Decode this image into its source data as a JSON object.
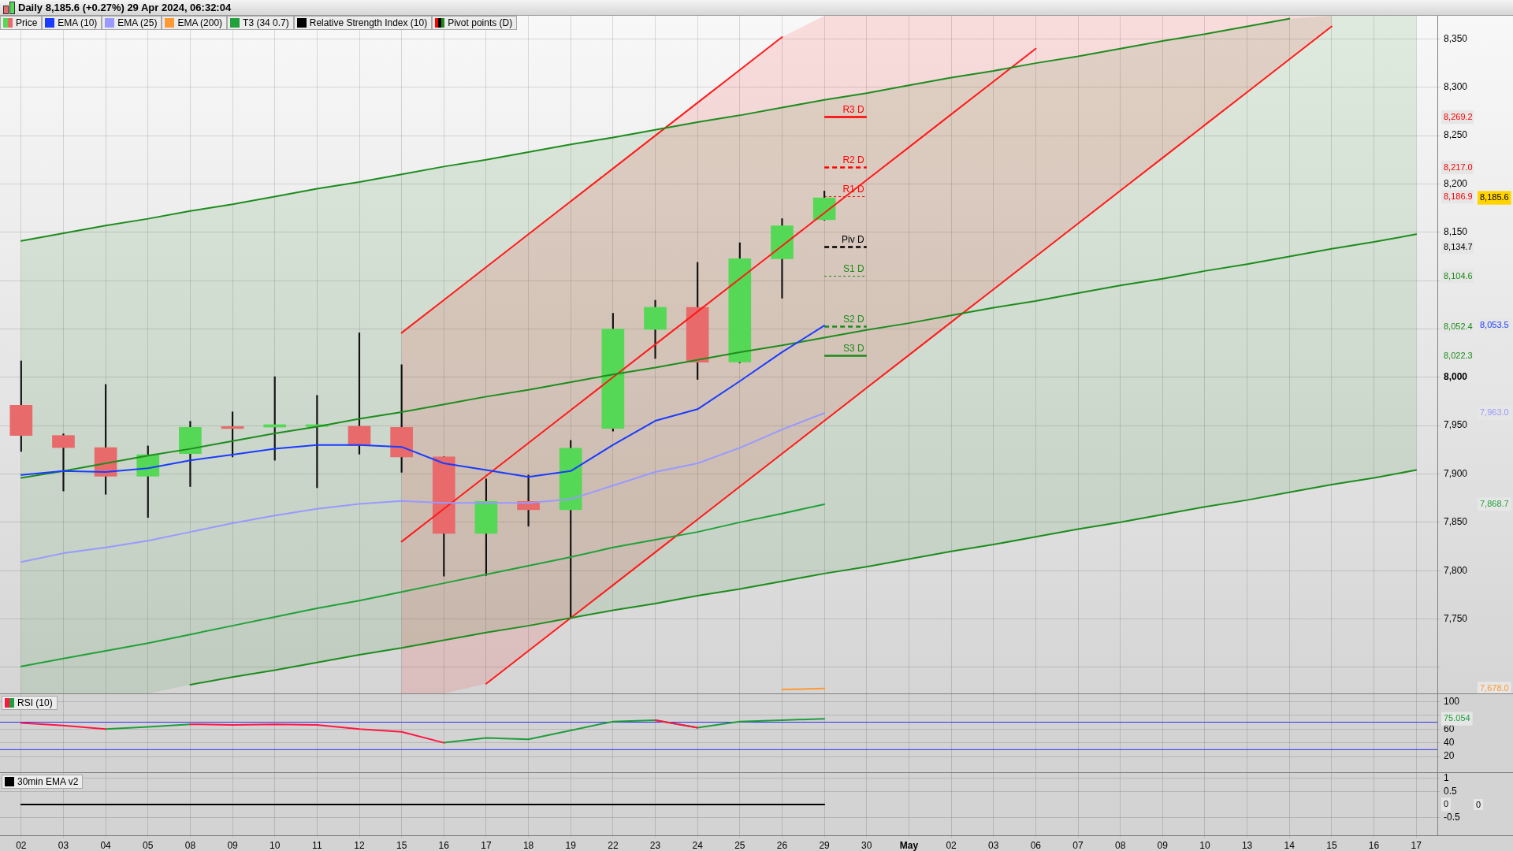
{
  "chart_data": [
    {
      "type": "candlestick",
      "title": "Daily 8,185.6 (+0.27%) 29 Apr 2024, 06:32:04",
      "legend": "top left",
      "grid": true,
      "tick_labels": "y",
      "categories": [
        null,
        null,
        null,
        null,
        null,
        null,
        null,
        null,
        null,
        null,
        null,
        null,
        null,
        null,
        null,
        null,
        null,
        null,
        null,
        null,
        null,
        null,
        null,
        null,
        null,
        null,
        null,
        null,
        null,
        null,
        null,
        null,
        null,
        null
      ],
      "ylim": [
        7673,
        8374
      ],
      "yticks": [
        {
          "value": 7700,
          "label": null
        },
        {
          "value": 7750,
          "label": "7,750"
        },
        {
          "value": 7800,
          "label": "7,800"
        },
        {
          "value": 7850,
          "label": "7,850"
        },
        {
          "value": 7900,
          "label": "7,900"
        },
        {
          "value": 7950,
          "label": "7,950"
        },
        {
          "value": 8000,
          "label": "8,000"
        },
        {
          "value": 8022.3,
          "label": "8,022.3"
        },
        {
          "value": 8050,
          "label": null
        },
        {
          "value": 8052.4,
          "label": "8,052.4"
        },
        {
          "value": 8100,
          "label": null
        },
        {
          "value": 8104.6,
          "label": "8,104.6"
        },
        {
          "value": 8134.7,
          "label": "8,134.7"
        },
        {
          "value": 8150,
          "label": "8,150"
        },
        {
          "value": 8186.9,
          "label": "8,186.9"
        },
        {
          "value": 8200,
          "label": "8,200"
        },
        {
          "value": 8217.0,
          "label": "8,217.0"
        },
        {
          "value": 8250,
          "label": "8,250"
        },
        {
          "value": 8269.2,
          "label": "8,269.2"
        },
        {
          "value": 8300,
          "label": "8,300"
        },
        {
          "value": 8350,
          "label": "8,350"
        }
      ],
      "y2lim": [
        7673,
        8374
      ],
      "y2ticks": [
        {
          "value": 7678.0,
          "label": "7,678.0"
        },
        {
          "value": 7868.7,
          "label": "7,868.7"
        },
        {
          "value": 7963.0,
          "label": "7,963.0"
        },
        {
          "value": 8053.5,
          "label": "8,053.5"
        },
        {
          "value": 8185.6,
          "label": "8,185.6"
        }
      ],
      "annotations": [
        "Relative Strength Index (10)",
        "Pivot points (D)"
      ],
      "ref_lines": [
        {
          "axis": "y",
          "value": 8269.2,
          "label": "R3 D",
          "color": "#ff0000",
          "line_style": "solid"
        },
        {
          "axis": "y",
          "value": 8217.0,
          "label": "R2 D",
          "color": "#ff0000",
          "line_style": "dashed"
        },
        {
          "axis": "y",
          "value": 8186.9,
          "label": "R1 D",
          "color": "#ff0000",
          "line_style": "dotted"
        },
        {
          "axis": "y",
          "value": 8134.7,
          "label": "Piv D",
          "color": "#000000",
          "line_style": "dashed"
        },
        {
          "axis": "y",
          "value": 8104.6,
          "label": "S1 D",
          "color": "#1a8a1a",
          "line_style": "dotted"
        },
        {
          "axis": "y",
          "value": 8052.4,
          "label": "S2 D",
          "color": "#1a8a1a",
          "line_style": "dashed"
        },
        {
          "axis": "y",
          "value": 8022.3,
          "label": "S3 D",
          "color": "#1a8a1a",
          "line_style": "solid"
        }
      ],
      "series": [
        {
          "name": "Price",
          "ohlc": [
            [
              7971.0,
              8017.0,
              7923.3,
              7939.8
            ],
            [
              7939.8,
              7941.5,
              7882.4,
              7927.3
            ],
            [
              7927.3,
              7992.6,
              7879.0,
              7897.7
            ],
            [
              7897.7,
              7929.0,
              7855.0,
              7919.9
            ],
            [
              7921.0,
              7954.5,
              7887.0,
              7948.3
            ],
            [
              7949.0,
              7964.2,
              7917.6,
              7947.0
            ],
            [
              7948.5,
              8000.6,
              7914.2,
              7951.0
            ],
            [
              7949.0,
              7981.3,
              7885.8,
              7951.0
            ],
            [
              7949.4,
              8046.0,
              7920.5,
              7929.5
            ],
            [
              7948.3,
              8013.0,
              7901.7,
              7917.6
            ],
            [
              7917.6,
              7918.0,
              7794.3,
              7838.6
            ],
            [
              7838.6,
              7894.9,
              7795.0,
              7871.6
            ],
            [
              7871.6,
              7898.9,
              7846.0,
              7863.0
            ],
            [
              7863.0,
              7934.7,
              7751.0,
              7926.7
            ],
            [
              7947.2,
              8066.2,
              7944.3,
              8050.0
            ],
            [
              8049.5,
              8079.7,
              8019.5,
              8072.4
            ],
            [
              8072.4,
              8118.9,
              7997.8,
              8015.7
            ],
            [
              8015.9,
              8139.2,
              8015.0,
              8122.7
            ],
            [
              8122.7,
              8164.1,
              8081.9,
              8156.8
            ],
            [
              8163.0,
              8192.7,
              8162.4,
              8185.6
            ],
            null,
            null,
            null,
            null,
            null,
            null,
            null,
            null,
            null,
            null,
            null,
            null,
            null,
            null
          ],
          "colors": [
            "#e86a6a",
            "#e86a6a",
            "#e86a6a",
            "#55d855",
            "#55d855",
            "#e86a6a",
            "#55d855",
            "#55d855",
            "#e86a6a",
            "#e86a6a",
            "#e86a6a",
            "#55d855",
            "#e86a6a",
            "#55d855",
            "#55d855",
            "#55d855",
            "#e86a6a",
            "#55d855",
            "#55d855",
            "#55d855",
            null,
            null,
            null,
            null,
            null,
            null,
            null,
            null,
            null,
            null,
            null,
            null,
            null,
            null
          ]
        },
        {
          "name": "EMA (10)",
          "type": "line",
          "color": "#1a3cff",
          "values": [
            7899,
            7903,
            7902,
            7906,
            7914,
            7920,
            7926,
            7930,
            7930,
            7928,
            7911,
            7904,
            7897,
            7903,
            7930,
            7955,
            7967,
            7996,
            8026,
            8053.5,
            null,
            null,
            null,
            null,
            null,
            null,
            null,
            null,
            null,
            null,
            null,
            null,
            null,
            null
          ]
        },
        {
          "name": "EMA (25)",
          "type": "line",
          "color": "#9999ff",
          "values": [
            7809,
            7818,
            7824,
            7831,
            7840,
            7849,
            7857,
            7864,
            7869,
            7872,
            7870,
            7870,
            7870,
            7874,
            7888,
            7902,
            7911,
            7927,
            7946,
            7963.0,
            null,
            null,
            null,
            null,
            null,
            null,
            null,
            null,
            null,
            null,
            null,
            null,
            null,
            null
          ]
        },
        {
          "name": "EMA (200)",
          "type": "line",
          "color": "#ff9933",
          "values": [
            null,
            null,
            null,
            null,
            null,
            null,
            null,
            null,
            null,
            null,
            null,
            null,
            null,
            null,
            null,
            null,
            null,
            null,
            7677,
            7678.0,
            null,
            null,
            null,
            null,
            null,
            null,
            null,
            null,
            null,
            null,
            null,
            null,
            null,
            null
          ]
        },
        {
          "name": "T3 (34 0.7)",
          "type": "line",
          "color": "#22a03a",
          "values": [
            7701,
            7709,
            7717,
            7725,
            7734,
            7743,
            7752,
            7761,
            7769,
            7778,
            7787,
            7796,
            7805,
            7814,
            7824,
            7832,
            7840,
            7850,
            7859,
            7868.7,
            null,
            null,
            null,
            null,
            null,
            null,
            null,
            null,
            null,
            null,
            null,
            null,
            null,
            null
          ]
        },
        {
          "type": "line",
          "color": "#1e8c1e",
          "values": [
            8141,
            8149,
            8157,
            8164,
            8172,
            8179,
            8187,
            8195,
            8202,
            8210,
            8218,
            8225,
            8233,
            8241,
            8248,
            8256,
            8264,
            8271,
            8279,
            8287,
            8294,
            8302,
            8310,
            8317,
            8325,
            8332,
            8340,
            8348,
            8355,
            8363,
            8371,
            null,
            null,
            null
          ]
        },
        {
          "type": "line",
          "color": "#1e8c1e",
          "values": [
            7896,
            7903,
            7911,
            7919,
            7926,
            7934,
            7942,
            7949,
            7957,
            7964,
            7972,
            7980,
            7987,
            7995,
            8003,
            8010,
            8018,
            8026,
            8033,
            8041,
            8049,
            8056,
            8064,
            8072,
            8079,
            8087,
            8095,
            8102,
            8110,
            8117,
            8125,
            8133,
            8140,
            8148
          ],
          "lower": [
            7673,
            7673,
            7673,
            7673,
            7682,
            7690,
            7697,
            7705,
            7713,
            7720,
            7728,
            7736,
            7743,
            7751,
            7759,
            7766,
            7774,
            7781,
            7789,
            7797,
            7804,
            7812,
            7820,
            7827,
            7835,
            7843,
            7850,
            7858,
            7866,
            7873,
            7881,
            7889,
            7896,
            7904
          ],
          "upper": [
            8141,
            8149,
            8157,
            8164,
            8172,
            8179,
            8187,
            8195,
            8202,
            8210,
            8218,
            8225,
            8233,
            8241,
            8248,
            8256,
            8264,
            8271,
            8279,
            8287,
            8294,
            8302,
            8310,
            8317,
            8325,
            8332,
            8340,
            8348,
            8355,
            8363,
            8371,
            8374,
            8374,
            8374
          ]
        },
        {
          "type": "line",
          "color": "#1e8c1e",
          "values": [
            null,
            null,
            null,
            null,
            7682,
            7690,
            7697,
            7705,
            7713,
            7720,
            7728,
            7736,
            7743,
            7751,
            7759,
            7766,
            7774,
            7781,
            7789,
            7797,
            7804,
            7812,
            7820,
            7827,
            7835,
            7843,
            7850,
            7858,
            7866,
            7873,
            7881,
            7889,
            7896,
            7904
          ]
        },
        {
          "type": "line",
          "color": "#ff1a1a",
          "values": [
            null,
            null,
            null,
            null,
            null,
            null,
            null,
            null,
            null,
            8046,
            8080,
            8114,
            8148,
            8182,
            8216,
            8250,
            8284,
            8318,
            8352,
            null,
            null,
            null,
            null,
            null,
            null,
            null,
            null,
            null,
            null,
            null,
            null,
            null,
            null,
            null
          ]
        },
        {
          "type": "line",
          "color": "#ff1a1a",
          "values": [
            null,
            null,
            null,
            null,
            null,
            null,
            null,
            null,
            null,
            7830,
            7864,
            7898,
            7932,
            7966,
            8000,
            8034,
            8068,
            8102,
            8136,
            8170,
            8204,
            8238,
            8272,
            8306,
            8340,
            null,
            null,
            null,
            null,
            null,
            null,
            null,
            null,
            null
          ],
          "lower": [
            null,
            null,
            null,
            null,
            null,
            null,
            null,
            null,
            null,
            7673,
            7673,
            7683,
            null,
            null,
            null,
            null,
            null,
            null,
            null,
            null,
            null,
            null,
            null,
            null,
            null,
            null,
            null,
            null,
            null,
            null,
            null,
            null,
            null,
            null
          ],
          "upper": [
            null,
            null,
            null,
            null,
            null,
            null,
            null,
            null,
            null,
            8046,
            8080,
            8114,
            null,
            null,
            null,
            null,
            null,
            null,
            null,
            null,
            null,
            null,
            null,
            null,
            null,
            null,
            null,
            null,
            null,
            null,
            null,
            null,
            null,
            null
          ]
        },
        {
          "type": "line",
          "color": "#ff1a1a",
          "values": [
            null,
            null,
            null,
            null,
            null,
            null,
            null,
            null,
            null,
            null,
            null,
            7683,
            7717,
            7751,
            7785,
            7819,
            7853,
            7887,
            7921,
            7955,
            7989,
            8023,
            8057,
            8091,
            8125,
            8159,
            8193,
            8227,
            8261,
            8295,
            8329,
            8363,
            null,
            null
          ],
          "lower": [
            null,
            null,
            null,
            null,
            null,
            null,
            null,
            null,
            null,
            null,
            null,
            7683,
            7717,
            7751,
            7785,
            7819,
            7853,
            7887,
            7921,
            7955,
            7989,
            8023,
            8057,
            8091,
            8125,
            8159,
            8193,
            8227,
            8261,
            8295,
            8329,
            8363,
            null,
            null
          ],
          "upper": [
            null,
            null,
            null,
            null,
            null,
            null,
            null,
            null,
            null,
            null,
            null,
            8114,
            8148,
            8182,
            8216,
            8250,
            8284,
            8318,
            8352,
            8374,
            8374,
            8374,
            8374,
            8374,
            8374,
            8374,
            8374,
            8374,
            8374,
            8374,
            8374,
            8374,
            null,
            null
          ]
        }
      ]
    },
    {
      "type": "line",
      "title": "RSI (10)",
      "grid": true,
      "tick_labels": "y",
      "categories": [
        null,
        null,
        null,
        null,
        null,
        null,
        null,
        null,
        null,
        null,
        null,
        null,
        null,
        null,
        null,
        null,
        null,
        null,
        null,
        null,
        null,
        null,
        null,
        null,
        null,
        null,
        null,
        null,
        null,
        null,
        null,
        null,
        null,
        null
      ],
      "ylim": [
        -3,
        112
      ],
      "yticks": [
        20,
        40,
        60,
        75.054,
        {
          "value": 80,
          "label": null
        },
        100
      ],
      "ref_lines": [
        {
          "axis": "y",
          "value": 70,
          "color": "#3333ee"
        },
        {
          "axis": "y",
          "value": 30,
          "color": "#3333ee"
        }
      ],
      "series": [
        {
          "color": "#ff1744",
          "values": [
            69,
            65,
            60,
            null,
            67,
            66,
            67,
            66,
            60,
            56,
            40,
            null,
            null,
            null,
            null,
            73,
            62,
            null,
            null,
            null,
            null,
            null,
            null,
            null,
            null,
            null,
            null,
            null,
            null,
            null,
            null,
            null,
            null,
            null
          ]
        },
        {
          "color": "#1e9e3c",
          "values": [
            null,
            null,
            60,
            63,
            67,
            null,
            null,
            null,
            null,
            null,
            40,
            47,
            45,
            58,
            71,
            73,
            62,
            71,
            73,
            75.054,
            null,
            null,
            null,
            null,
            null,
            null,
            null,
            null,
            null,
            null,
            null,
            null,
            null,
            null
          ]
        }
      ]
    },
    {
      "type": "line",
      "title": "30min EMA v2",
      "grid": true,
      "categories": [
        "02",
        "03",
        "04",
        "05",
        "08",
        "09",
        "10",
        "11",
        "12",
        "15",
        "16",
        "17",
        "18",
        "19",
        "22",
        "23",
        "24",
        "25",
        "26",
        "29",
        "30",
        "May",
        "02",
        "03",
        "06",
        "07",
        "08",
        "09",
        "10",
        "13",
        "14",
        "15",
        "16",
        "17"
      ],
      "ylim": [
        -1.16,
        1.22
      ],
      "yticks": [
        -0.5,
        0,
        0.5,
        1
      ],
      "annotations": [
        "0"
      ],
      "series": [
        {
          "color": "#000000",
          "values": [
            0,
            0,
            0,
            0,
            0,
            0,
            0,
            0,
            0,
            0,
            0,
            0,
            0,
            0,
            0,
            0,
            0,
            0,
            0,
            0,
            null,
            null,
            null,
            null,
            null,
            null,
            null,
            null,
            null,
            null,
            null,
            null,
            null,
            null
          ]
        }
      ]
    }
  ]
}
